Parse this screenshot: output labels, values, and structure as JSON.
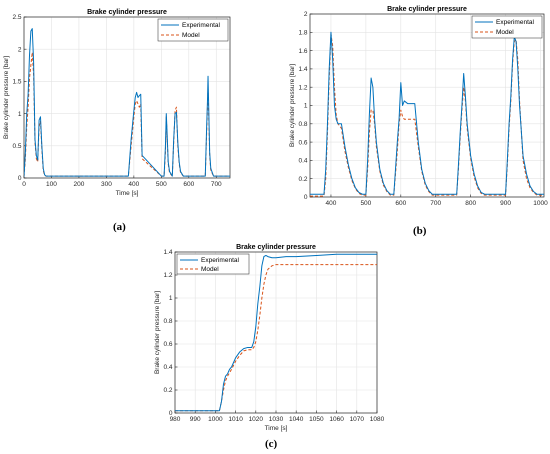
{
  "colors": {
    "experimental": "#0072BD",
    "model": "#D95319",
    "grid": "#e3e3e3",
    "axis": "#262626"
  },
  "captions": [
    "(a)",
    "(b)",
    "(c)"
  ],
  "chart_data": [
    {
      "type": "line",
      "title": "Brake cylinder pressure",
      "xlabel": "Time [s]",
      "ylabel": "Brake cylinder pressure [bar]",
      "xlim": [
        0,
        750
      ],
      "ylim": [
        0,
        2.5
      ],
      "xticks": [
        0,
        100,
        200,
        300,
        400,
        500,
        600,
        700
      ],
      "yticks": [
        0,
        0.5,
        1,
        1.5,
        2,
        2.5
      ],
      "xtick_labels": [
        "0",
        "100",
        "200",
        "300",
        "400",
        "500",
        "600",
        "700"
      ],
      "ytick_labels": [
        "0",
        "0.5",
        "1",
        "1.5",
        "2",
        "2.5"
      ],
      "grid": true,
      "legend": "top-right",
      "series": [
        {
          "name": "Experimental",
          "style": "solid",
          "x": [
            0,
            5,
            10,
            15,
            20,
            25,
            30,
            35,
            40,
            45,
            50,
            55,
            60,
            65,
            70,
            75,
            80,
            85,
            90,
            100,
            200,
            300,
            360,
            380,
            390,
            400,
            405,
            410,
            415,
            420,
            425,
            430,
            500,
            510,
            515,
            518,
            520,
            525,
            530,
            540,
            545,
            550,
            555,
            560,
            565,
            570,
            580,
            650,
            660,
            665,
            668,
            670,
            673,
            676,
            680,
            690,
            700,
            750
          ],
          "y": [
            0.02,
            0.4,
            1.0,
            1.3,
            1.9,
            2.28,
            2.32,
            1.8,
            0.6,
            0.35,
            0.28,
            0.9,
            0.95,
            0.5,
            0.15,
            0.05,
            0.03,
            0.03,
            0.03,
            0.03,
            0.03,
            0.03,
            0.03,
            0.03,
            0.6,
            1.05,
            1.25,
            1.33,
            1.25,
            1.28,
            1.3,
            0.35,
            0.03,
            0.03,
            0.5,
            1.0,
            0.8,
            0.25,
            0.1,
            0.03,
            0.6,
            1.0,
            1.02,
            0.55,
            0.25,
            0.1,
            0.03,
            0.03,
            0.03,
            0.8,
            1.2,
            1.58,
            1.0,
            0.4,
            0.15,
            0.03,
            0.03,
            0.03
          ]
        },
        {
          "name": "Model",
          "style": "dashed",
          "x": [
            0,
            5,
            10,
            15,
            20,
            25,
            30,
            35,
            40,
            45,
            50,
            55,
            60,
            65,
            70,
            75,
            80,
            85,
            90,
            100,
            200,
            300,
            360,
            380,
            390,
            400,
            405,
            410,
            415,
            420,
            425,
            430,
            500,
            510,
            515,
            518,
            520,
            525,
            530,
            540,
            545,
            550,
            555,
            560,
            565,
            570,
            580,
            650,
            660,
            665,
            668,
            670,
            673,
            676,
            680,
            690,
            700,
            750
          ],
          "y": [
            0.02,
            0.3,
            0.8,
            1.1,
            1.55,
            1.75,
            1.95,
            1.6,
            0.55,
            0.3,
            0.25,
            0.8,
            0.88,
            0.45,
            0.12,
            0.04,
            0.03,
            0.03,
            0.03,
            0.03,
            0.03,
            0.03,
            0.03,
            0.03,
            0.5,
            0.95,
            1.15,
            1.2,
            1.15,
            1.1,
            1.15,
            0.3,
            0.03,
            0.03,
            0.4,
            0.95,
            0.75,
            0.22,
            0.08,
            0.03,
            0.55,
            1.05,
            1.1,
            0.5,
            0.22,
            0.08,
            0.03,
            0.03,
            0.03,
            0.7,
            1.1,
            1.38,
            0.9,
            0.35,
            0.12,
            0.03,
            0.03,
            0.03
          ]
        }
      ]
    },
    {
      "type": "line",
      "title": "Brake cylinder pressure",
      "xlabel": "",
      "ylabel": "Brake cylinder pressure [bar]",
      "xlim": [
        340,
        1010
      ],
      "ylim": [
        0,
        2
      ],
      "xticks": [
        400,
        500,
        600,
        700,
        800,
        900,
        1000
      ],
      "yticks": [
        0,
        0.2,
        0.4,
        0.6,
        0.8,
        1,
        1.2,
        1.4,
        1.6,
        1.8,
        2
      ],
      "xtick_labels": [
        "400",
        "500",
        "600",
        "700",
        "800",
        "900",
        "1000"
      ],
      "ytick_labels": [
        "0",
        "0.2",
        "0.4",
        "0.6",
        "0.8",
        "1",
        "1.2",
        "1.4",
        "1.6",
        "1.8",
        "2"
      ],
      "grid": true,
      "legend": "top-right",
      "series": [
        {
          "name": "Experimental",
          "style": "solid",
          "x": [
            340,
            380,
            385,
            390,
            395,
            400,
            405,
            410,
            415,
            420,
            430,
            440,
            450,
            460,
            470,
            480,
            490,
            500,
            505,
            510,
            515,
            520,
            525,
            530,
            540,
            550,
            560,
            570,
            580,
            590,
            595,
            600,
            605,
            610,
            620,
            630,
            640,
            650,
            660,
            670,
            680,
            690,
            700,
            710,
            740,
            760,
            765,
            770,
            775,
            780,
            785,
            790,
            800,
            810,
            820,
            830,
            840,
            900,
            905,
            910,
            915,
            920,
            925,
            930,
            935,
            940,
            950,
            960,
            970,
            980,
            990,
            1000,
            1010
          ],
          "y": [
            0.03,
            0.03,
            0.3,
            0.8,
            1.4,
            1.8,
            1.5,
            1.0,
            0.85,
            0.8,
            0.8,
            0.55,
            0.35,
            0.2,
            0.1,
            0.05,
            0.03,
            0.03,
            0.4,
            0.9,
            1.3,
            1.2,
            0.85,
            0.6,
            0.3,
            0.15,
            0.07,
            0.03,
            0.03,
            0.6,
            0.85,
            1.25,
            1.0,
            1.05,
            1.02,
            1.02,
            1.02,
            0.6,
            0.3,
            0.15,
            0.07,
            0.03,
            0.03,
            0.03,
            0.03,
            0.03,
            0.35,
            0.7,
            1.0,
            1.35,
            1.1,
            0.8,
            0.45,
            0.25,
            0.12,
            0.05,
            0.03,
            0.03,
            0.4,
            0.8,
            1.1,
            1.5,
            1.75,
            1.7,
            1.4,
            1.0,
            0.45,
            0.25,
            0.12,
            0.06,
            0.03,
            0.03,
            0.03
          ]
        },
        {
          "name": "Model",
          "style": "dashed",
          "x": [
            340,
            380,
            385,
            390,
            395,
            400,
            405,
            410,
            415,
            420,
            430,
            440,
            450,
            460,
            470,
            480,
            490,
            500,
            505,
            510,
            515,
            520,
            525,
            530,
            540,
            550,
            560,
            570,
            580,
            590,
            595,
            600,
            605,
            610,
            620,
            630,
            640,
            650,
            660,
            670,
            680,
            690,
            700,
            710,
            740,
            760,
            765,
            770,
            775,
            780,
            785,
            790,
            800,
            810,
            820,
            830,
            840,
            900,
            905,
            910,
            915,
            920,
            925,
            930,
            935,
            940,
            950,
            960,
            970,
            980,
            990,
            1000,
            1010
          ],
          "y": [
            0.01,
            0.01,
            0.2,
            0.7,
            1.3,
            1.78,
            1.65,
            1.2,
            0.9,
            0.8,
            0.75,
            0.5,
            0.32,
            0.18,
            0.09,
            0.04,
            0.02,
            0.02,
            0.3,
            0.7,
            0.95,
            0.95,
            0.8,
            0.55,
            0.28,
            0.13,
            0.06,
            0.02,
            0.02,
            0.5,
            0.8,
            0.95,
            0.88,
            0.85,
            0.85,
            0.85,
            0.85,
            0.55,
            0.28,
            0.13,
            0.06,
            0.02,
            0.02,
            0.02,
            0.02,
            0.02,
            0.3,
            0.65,
            0.95,
            1.2,
            1.05,
            0.75,
            0.42,
            0.22,
            0.1,
            0.04,
            0.02,
            0.02,
            0.35,
            0.75,
            1.05,
            1.45,
            1.7,
            1.72,
            1.5,
            1.05,
            0.4,
            0.2,
            0.1,
            0.05,
            0.02,
            0.02,
            0.02
          ]
        }
      ]
    },
    {
      "type": "line",
      "title": "Brake cylinder pressure",
      "xlabel": "Time [s]",
      "ylabel": "Brake cylinder pressure [bar]",
      "xlim": [
        980,
        1080
      ],
      "ylim": [
        0,
        1.4
      ],
      "xticks": [
        980,
        990,
        1000,
        1010,
        1020,
        1030,
        1040,
        1050,
        1060,
        1070,
        1080
      ],
      "yticks": [
        0,
        0.2,
        0.4,
        0.6,
        0.8,
        1,
        1.2,
        1.4
      ],
      "xtick_labels": [
        "980",
        "990",
        "1000",
        "1010",
        "1020",
        "1030",
        "1040",
        "1050",
        "1060",
        "1070",
        "1080"
      ],
      "ytick_labels": [
        "0",
        "0.2",
        "0.4",
        "0.6",
        "0.8",
        "1",
        "1.2",
        "1.4"
      ],
      "grid": true,
      "legend": "top-left",
      "series": [
        {
          "name": "Experimental",
          "style": "solid",
          "x": [
            980,
            1002,
            1003,
            1004,
            1005,
            1006,
            1007,
            1008,
            1010,
            1012,
            1014,
            1016,
            1018,
            1019,
            1020,
            1021,
            1022,
            1023,
            1024,
            1025,
            1026,
            1028,
            1030,
            1035,
            1040,
            1050,
            1060,
            1070,
            1080
          ],
          "y": [
            0.02,
            0.02,
            0.1,
            0.25,
            0.32,
            0.34,
            0.38,
            0.4,
            0.48,
            0.53,
            0.56,
            0.57,
            0.57,
            0.62,
            0.75,
            0.95,
            1.1,
            1.28,
            1.36,
            1.37,
            1.36,
            1.35,
            1.35,
            1.36,
            1.36,
            1.37,
            1.38,
            1.38,
            1.38
          ]
        },
        {
          "name": "Model",
          "style": "dashed",
          "x": [
            980,
            1002,
            1003,
            1004,
            1005,
            1006,
            1007,
            1008,
            1010,
            1012,
            1014,
            1016,
            1018,
            1019,
            1020,
            1021,
            1022,
            1023,
            1024,
            1025,
            1026,
            1028,
            1030,
            1035,
            1040,
            1050,
            1060,
            1070,
            1080
          ],
          "y": [
            0.02,
            0.02,
            0.1,
            0.2,
            0.28,
            0.32,
            0.35,
            0.38,
            0.45,
            0.5,
            0.54,
            0.55,
            0.55,
            0.57,
            0.62,
            0.72,
            0.85,
            1.0,
            1.12,
            1.2,
            1.25,
            1.28,
            1.29,
            1.29,
            1.29,
            1.29,
            1.29,
            1.29,
            1.29
          ]
        }
      ]
    }
  ]
}
